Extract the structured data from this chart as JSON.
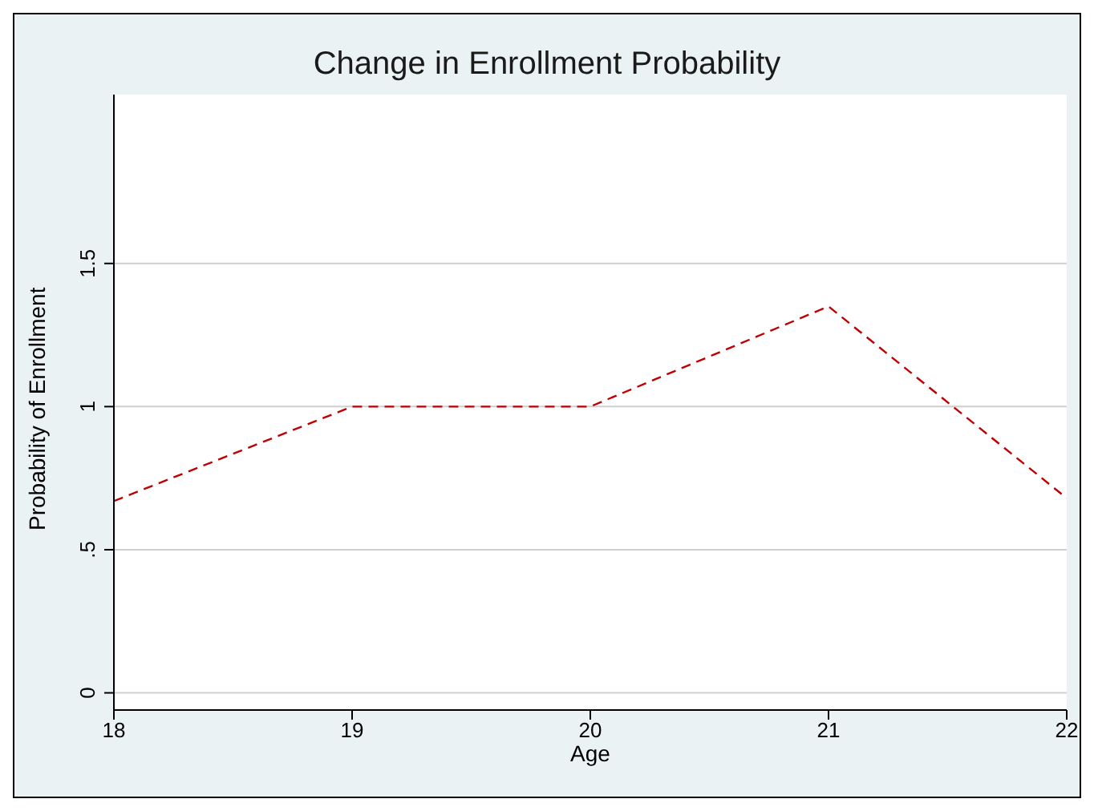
{
  "chart_data": {
    "type": "line",
    "title": "Change in Enrollment Probability",
    "xlabel": "Age",
    "ylabel": "Probability of Enrollment",
    "x": [
      18,
      19,
      20,
      21,
      22
    ],
    "series": [
      {
        "color": "#c00000",
        "values": [
          0.67,
          1.0,
          1.0,
          1.35,
          0.68
        ]
      }
    ],
    "xlim": [
      18,
      22
    ],
    "xticks": [
      18,
      19,
      20,
      21,
      22
    ],
    "ylim": [
      -0.06,
      2.09
    ],
    "yticks": [
      0,
      {
        "value": 0.5,
        "label": ".5"
      },
      1,
      1.5
    ],
    "grid": "y",
    "legend": false,
    "marker": "none",
    "line_style": "dashed"
  }
}
